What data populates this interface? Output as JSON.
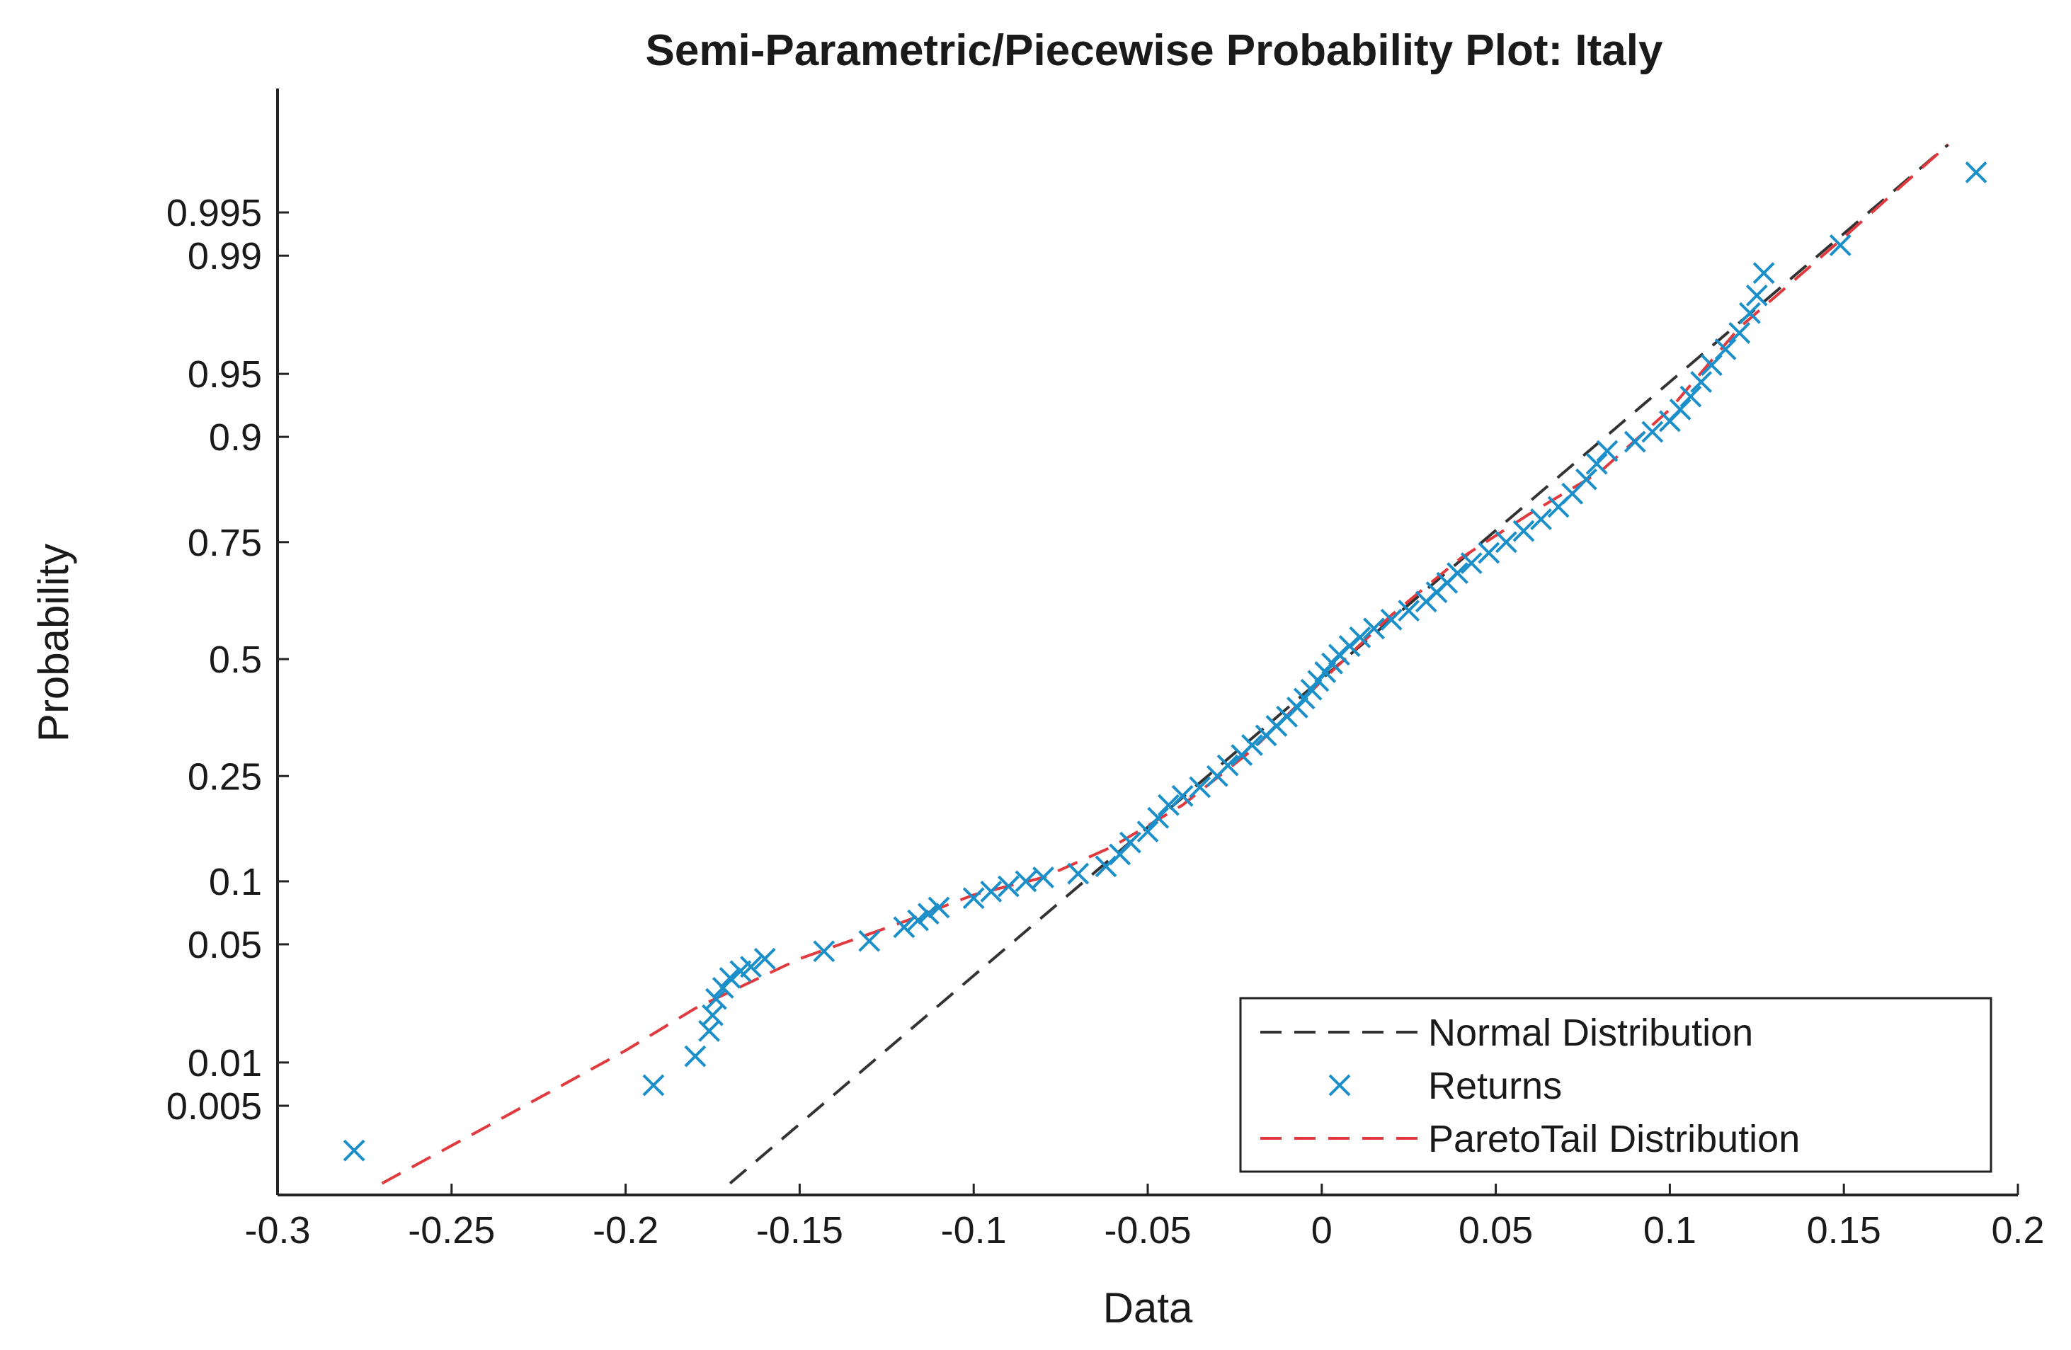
{
  "chart_data": {
    "type": "scatter",
    "title": "Semi-Parametric/Piecewise Probability Plot: Italy",
    "xlabel": "Data",
    "ylabel": "Probability",
    "xlim": [
      -0.3,
      0.2
    ],
    "ylim": [
      0.001,
      0.9995
    ],
    "y_scale": "normal-probability",
    "x_ticks": [
      -0.3,
      -0.25,
      -0.2,
      -0.15,
      -0.1,
      -0.05,
      0,
      0.05,
      0.1,
      0.15,
      0.2
    ],
    "x_tick_labels": [
      "-0.3",
      "-0.25",
      "-0.2",
      "-0.15",
      "-0.1",
      "-0.05",
      "0",
      "0.05",
      "0.1",
      "0.15",
      "0.2"
    ],
    "y_ticks": [
      0.005,
      0.01,
      0.05,
      0.1,
      0.25,
      0.5,
      0.75,
      0.9,
      0.95,
      0.99,
      0.995
    ],
    "y_tick_labels": [
      "0.005",
      "0.01",
      "0.05",
      "0.1",
      "0.25",
      "0.5",
      "0.75",
      "0.9",
      "0.95",
      "0.99",
      "0.995"
    ],
    "grid": false,
    "legend_position": "bottom-right",
    "series": [
      {
        "name": "Normal Distribution",
        "kind": "line",
        "style": "dashed",
        "color": "#333333",
        "points": [
          [
            -0.17,
            0.00125
          ],
          [
            0.18,
            0.9985
          ]
        ]
      },
      {
        "name": "Returns",
        "kind": "markers",
        "marker": "x",
        "color": "#1a8fc9",
        "points": [
          [
            -0.278,
            0.0023
          ],
          [
            -0.192,
            0.007
          ],
          [
            -0.18,
            0.011
          ],
          [
            -0.176,
            0.016
          ],
          [
            -0.175,
            0.02
          ],
          [
            -0.174,
            0.025
          ],
          [
            -0.172,
            0.029
          ],
          [
            -0.17,
            0.033
          ],
          [
            -0.167,
            0.036
          ],
          [
            -0.164,
            0.038
          ],
          [
            -0.16,
            0.042
          ],
          [
            -0.143,
            0.046
          ],
          [
            -0.13,
            0.052
          ],
          [
            -0.12,
            0.061
          ],
          [
            -0.116,
            0.066
          ],
          [
            -0.113,
            0.071
          ],
          [
            -0.11,
            0.076
          ],
          [
            -0.1,
            0.084
          ],
          [
            -0.095,
            0.09
          ],
          [
            -0.09,
            0.095
          ],
          [
            -0.085,
            0.1
          ],
          [
            -0.08,
            0.104
          ],
          [
            -0.07,
            0.108
          ],
          [
            -0.062,
            0.116
          ],
          [
            -0.058,
            0.13
          ],
          [
            -0.055,
            0.145
          ],
          [
            -0.05,
            0.16
          ],
          [
            -0.047,
            0.18
          ],
          [
            -0.044,
            0.2
          ],
          [
            -0.04,
            0.215
          ],
          [
            -0.035,
            0.23
          ],
          [
            -0.03,
            0.25
          ],
          [
            -0.027,
            0.27
          ],
          [
            -0.023,
            0.29
          ],
          [
            -0.02,
            0.31
          ],
          [
            -0.016,
            0.33
          ],
          [
            -0.013,
            0.35
          ],
          [
            -0.01,
            0.37
          ],
          [
            -0.007,
            0.39
          ],
          [
            -0.005,
            0.41
          ],
          [
            -0.003,
            0.43
          ],
          [
            -0.001,
            0.45
          ],
          [
            0.001,
            0.47
          ],
          [
            0.003,
            0.49
          ],
          [
            0.005,
            0.51
          ],
          [
            0.008,
            0.53
          ],
          [
            0.011,
            0.55
          ],
          [
            0.015,
            0.57
          ],
          [
            0.02,
            0.59
          ],
          [
            0.025,
            0.61
          ],
          [
            0.03,
            0.63
          ],
          [
            0.033,
            0.65
          ],
          [
            0.036,
            0.67
          ],
          [
            0.039,
            0.69
          ],
          [
            0.043,
            0.71
          ],
          [
            0.048,
            0.73
          ],
          [
            0.053,
            0.75
          ],
          [
            0.058,
            0.77
          ],
          [
            0.063,
            0.79
          ],
          [
            0.068,
            0.81
          ],
          [
            0.072,
            0.83
          ],
          [
            0.076,
            0.85
          ],
          [
            0.079,
            0.87
          ],
          [
            0.082,
            0.885
          ],
          [
            0.09,
            0.895
          ],
          [
            0.095,
            0.905
          ],
          [
            0.1,
            0.915
          ],
          [
            0.103,
            0.925
          ],
          [
            0.106,
            0.935
          ],
          [
            0.109,
            0.945
          ],
          [
            0.112,
            0.955
          ],
          [
            0.116,
            0.963
          ],
          [
            0.12,
            0.97
          ],
          [
            0.123,
            0.977
          ],
          [
            0.125,
            0.982
          ],
          [
            0.127,
            0.987
          ],
          [
            0.149,
            0.9915
          ],
          [
            0.188,
            0.9975
          ]
        ]
      },
      {
        "name": "ParetoTail Distribution",
        "kind": "line",
        "style": "dashed",
        "color": "#e0393e",
        "points": [
          [
            -0.27,
            0.00125
          ],
          [
            -0.24,
            0.0035
          ],
          [
            -0.2,
            0.012
          ],
          [
            -0.18,
            0.022
          ],
          [
            -0.15,
            0.042
          ],
          [
            -0.12,
            0.065
          ],
          [
            -0.1,
            0.087
          ],
          [
            -0.08,
            0.104
          ],
          [
            -0.06,
            0.14
          ],
          [
            -0.04,
            0.2
          ],
          [
            -0.02,
            0.3
          ],
          [
            0.0,
            0.45
          ],
          [
            0.02,
            0.6
          ],
          [
            0.04,
            0.72
          ],
          [
            0.06,
            0.8
          ],
          [
            0.08,
            0.86
          ],
          [
            0.1,
            0.925
          ],
          [
            0.12,
            0.972
          ],
          [
            0.15,
            0.9925
          ],
          [
            0.18,
            0.9985
          ]
        ]
      }
    ]
  }
}
